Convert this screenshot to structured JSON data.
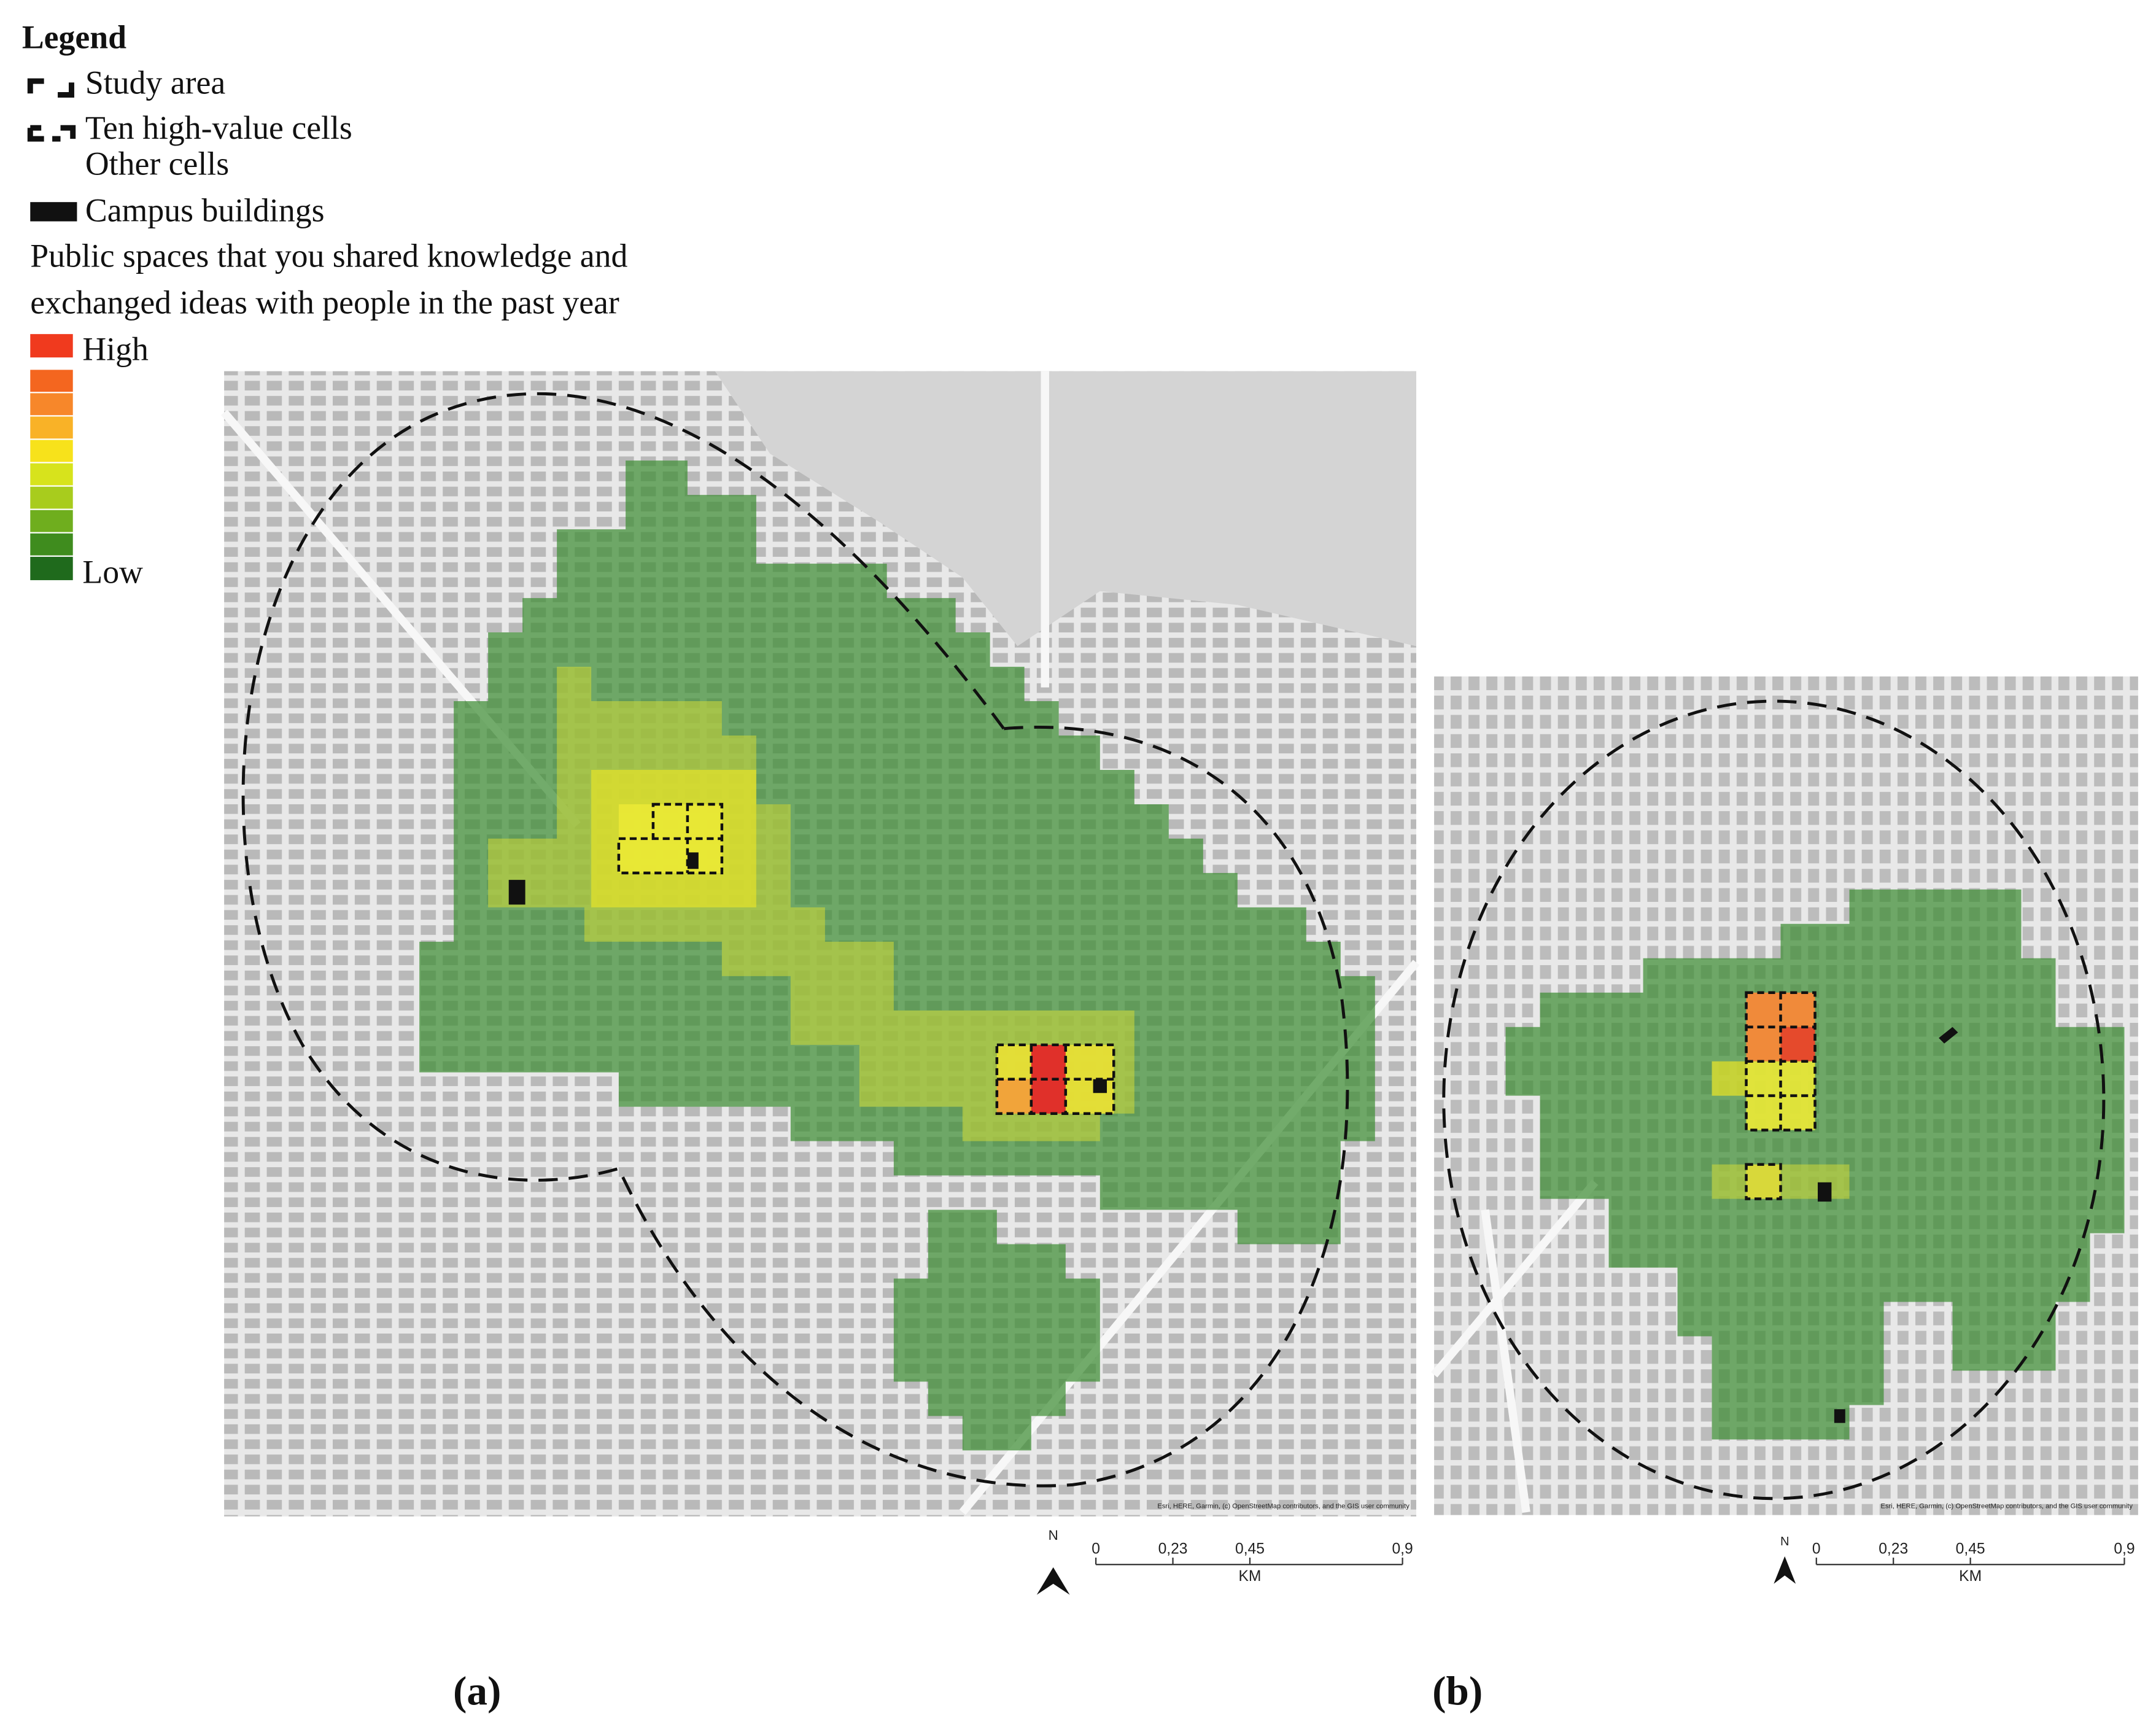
{
  "legend": {
    "title": "Legend",
    "items": [
      "Study area",
      "Ten high-value cells",
      "Other cells",
      "Campus buildings"
    ],
    "description": [
      "Public spaces that you shared knowledge and",
      "exchanged ideas with people in the past year"
    ],
    "high": "High",
    "low": "Low"
  },
  "maps": [
    {
      "label": "(a)",
      "north": "N",
      "scale_labels": [
        "0",
        "0,23",
        "0,45",
        "0,9"
      ],
      "unit": "KM",
      "attribution": "Esri, HERE, Garmin, (c) OpenStreetMap contributors, and the GIS user community"
    },
    {
      "label": "(b)",
      "north": "N",
      "scale_labels": [
        "0",
        "0,23",
        "0,45",
        "0,9"
      ],
      "unit": "KM",
      "attribution": "Esri, HERE, Garmin, (c) OpenStreetMap contributors, and the GIS user community"
    }
  ]
}
